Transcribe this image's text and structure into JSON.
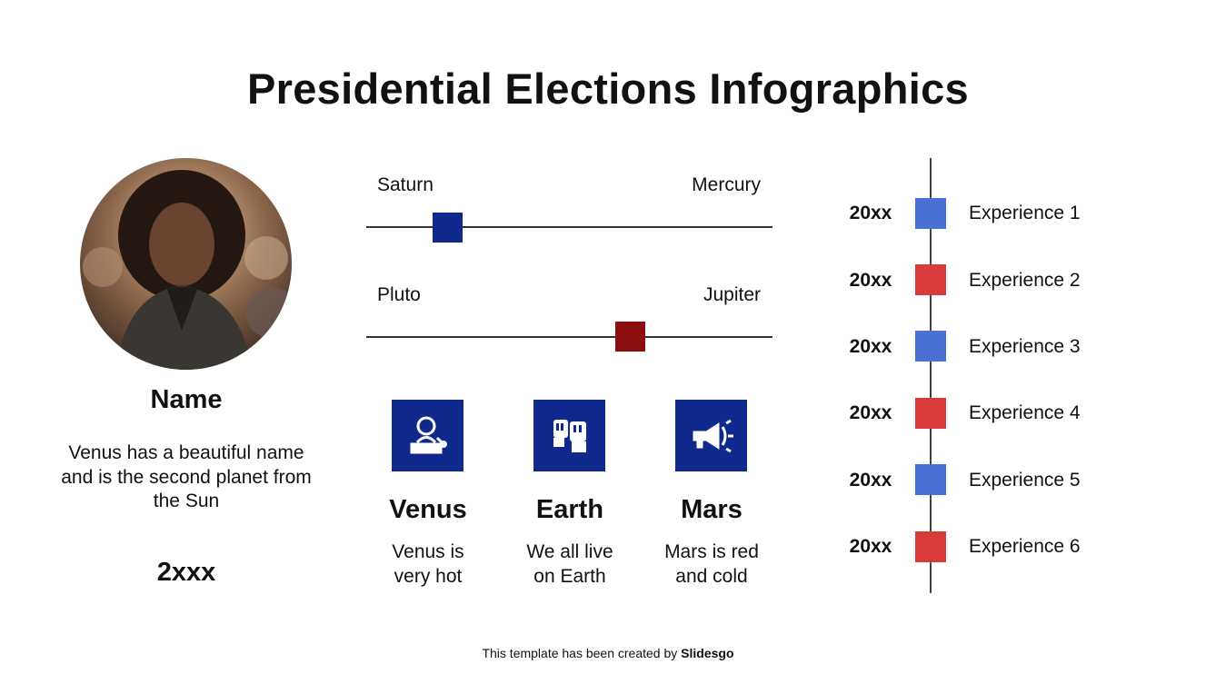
{
  "title": "Presidential Elections Infographics",
  "profile": {
    "name": "Name",
    "description": "Venus has a beautiful name and is the second planet from the Sun",
    "year": "2xxx"
  },
  "sliders": [
    {
      "left_label": "Saturn",
      "right_label": "Mercury",
      "position": 0.2,
      "color": "#0f2a8c"
    },
    {
      "left_label": "Pluto",
      "right_label": "Jupiter",
      "position": 0.65,
      "color": "#8c0f0f"
    }
  ],
  "cards": [
    {
      "icon": "speaker-podium-icon",
      "title": "Venus",
      "description": "Venus is very hot"
    },
    {
      "icon": "raised-fists-icon",
      "title": "Earth",
      "description": "We all live on Earth"
    },
    {
      "icon": "megaphone-icon",
      "title": "Mars",
      "description": "Mars is red and cold"
    }
  ],
  "timeline": [
    {
      "year": "20xx",
      "label": "Experience 1",
      "color": "#4a6fd4"
    },
    {
      "year": "20xx",
      "label": "Experience 2",
      "color": "#d93a3a"
    },
    {
      "year": "20xx",
      "label": "Experience 3",
      "color": "#4a6fd4"
    },
    {
      "year": "20xx",
      "label": "Experience 4",
      "color": "#d93a3a"
    },
    {
      "year": "20xx",
      "label": "Experience 5",
      "color": "#4a6fd4"
    },
    {
      "year": "20xx",
      "label": "Experience 6",
      "color": "#d93a3a"
    }
  ],
  "footer": {
    "text": "This template has been created by ",
    "brand": "Slidesgo"
  }
}
